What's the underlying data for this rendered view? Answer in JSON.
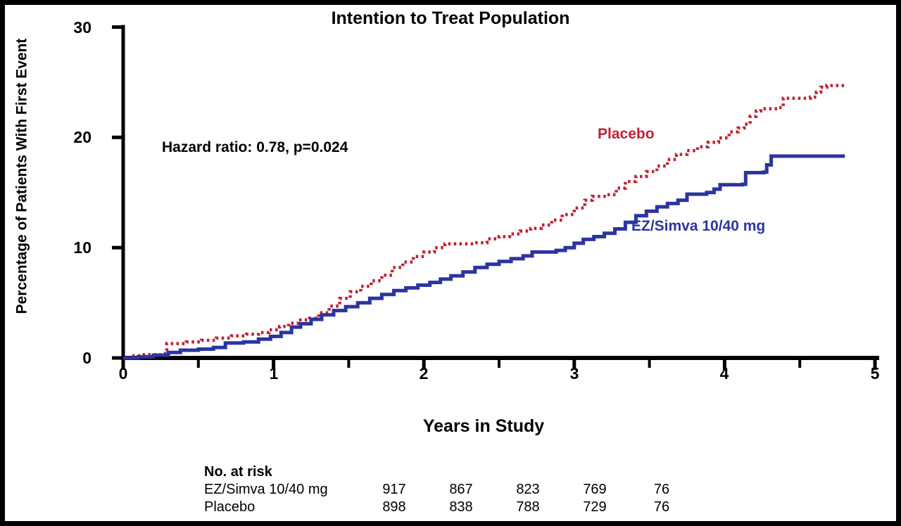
{
  "figure": {
    "title": "Intention to Treat Population",
    "y_axis_label": "Percentage of Patients With First Event",
    "x_axis_label": "Years in Study",
    "annotation": "Hazard ratio: 0.78, p=0.024"
  },
  "colors": {
    "placebo": "#c22033",
    "ez_simva": "#2b35a0",
    "axis": "#000000",
    "background": "#ffffff"
  },
  "curve_labels": {
    "placebo": "Placebo",
    "ez_simva": "EZ/Simva 10/40 mg"
  },
  "risk_table": {
    "header": "No. at risk",
    "rows": [
      {
        "label": "EZ/Simva 10/40 mg",
        "values": [
          "917",
          "867",
          "823",
          "769",
          "76"
        ]
      },
      {
        "label": "Placebo",
        "values": [
          "898",
          "838",
          "788",
          "729",
          "76"
        ]
      }
    ]
  },
  "chart_data": {
    "type": "line",
    "subtype": "kaplan-meier-step",
    "title": "Intention to Treat Population",
    "xlabel": "Years in Study",
    "ylabel": "Percentage of Patients With First Event",
    "annotation": "Hazard ratio: 0.78, p=0.024",
    "xlim": [
      0,
      5
    ],
    "ylim": [
      0,
      30
    ],
    "grid": false,
    "legend_position": "inline-curve-labels",
    "x_major_ticks": [
      0,
      1,
      2,
      3,
      4,
      5
    ],
    "x_minor_ticks": [
      0.5,
      1.5,
      2.5,
      3.5,
      4.5
    ],
    "y_ticks": [
      0,
      10,
      20,
      30
    ],
    "x_tick_labels": [
      "0",
      "1",
      "2",
      "3",
      "4",
      "5"
    ],
    "y_tick_labels": [
      "0",
      "10",
      "20",
      "30"
    ],
    "series": [
      {
        "name": "Placebo",
        "style": "dotted",
        "color": "#c22033",
        "points": [
          [
            0,
            0
          ],
          [
            0.06,
            0.2
          ],
          [
            0.14,
            0.3
          ],
          [
            0.25,
            0.4
          ],
          [
            0.29,
            1.3
          ],
          [
            0.42,
            1.45
          ],
          [
            0.52,
            1.6
          ],
          [
            0.62,
            1.8
          ],
          [
            0.72,
            2.0
          ],
          [
            0.82,
            2.15
          ],
          [
            0.9,
            2.3
          ],
          [
            0.97,
            2.55
          ],
          [
            1.04,
            2.85
          ],
          [
            1.1,
            3.15
          ],
          [
            1.17,
            3.45
          ],
          [
            1.24,
            3.6
          ],
          [
            1.3,
            4.1
          ],
          [
            1.37,
            4.7
          ],
          [
            1.44,
            5.4
          ],
          [
            1.51,
            6.0
          ],
          [
            1.58,
            6.5
          ],
          [
            1.65,
            7.0
          ],
          [
            1.72,
            7.5
          ],
          [
            1.79,
            8.2
          ],
          [
            1.86,
            8.7
          ],
          [
            1.93,
            9.2
          ],
          [
            2.0,
            9.6
          ],
          [
            2.07,
            10.0
          ],
          [
            2.14,
            10.35
          ],
          [
            2.34,
            10.45
          ],
          [
            2.42,
            10.8
          ],
          [
            2.5,
            11.0
          ],
          [
            2.57,
            11.25
          ],
          [
            2.64,
            11.5
          ],
          [
            2.71,
            11.75
          ],
          [
            2.78,
            12.05
          ],
          [
            2.85,
            12.5
          ],
          [
            2.92,
            13.0
          ],
          [
            3.0,
            13.6
          ],
          [
            3.07,
            14.3
          ],
          [
            3.12,
            14.65
          ],
          [
            3.22,
            14.8
          ],
          [
            3.28,
            15.4
          ],
          [
            3.34,
            16.0
          ],
          [
            3.41,
            16.45
          ],
          [
            3.48,
            16.9
          ],
          [
            3.55,
            17.4
          ],
          [
            3.62,
            18.0
          ],
          [
            3.68,
            18.45
          ],
          [
            3.75,
            18.8
          ],
          [
            3.82,
            19.15
          ],
          [
            3.89,
            19.55
          ],
          [
            3.96,
            19.95
          ],
          [
            4.03,
            20.5
          ],
          [
            4.09,
            20.85
          ],
          [
            4.13,
            21.2
          ],
          [
            4.17,
            21.9
          ],
          [
            4.21,
            22.4
          ],
          [
            4.24,
            22.6
          ],
          [
            4.36,
            22.7
          ],
          [
            4.39,
            23.55
          ],
          [
            4.57,
            23.65
          ],
          [
            4.61,
            24.1
          ],
          [
            4.64,
            24.55
          ],
          [
            4.68,
            24.7
          ],
          [
            4.8,
            24.75
          ]
        ]
      },
      {
        "name": "EZ/Simva 10/40 mg",
        "style": "solid",
        "color": "#2b35a0",
        "points": [
          [
            0,
            0
          ],
          [
            0.1,
            0.1
          ],
          [
            0.2,
            0.25
          ],
          [
            0.3,
            0.5
          ],
          [
            0.38,
            0.7
          ],
          [
            0.5,
            0.8
          ],
          [
            0.6,
            0.95
          ],
          [
            0.68,
            1.35
          ],
          [
            0.8,
            1.45
          ],
          [
            0.9,
            1.7
          ],
          [
            0.98,
            1.95
          ],
          [
            1.05,
            2.3
          ],
          [
            1.12,
            2.8
          ],
          [
            1.18,
            3.1
          ],
          [
            1.25,
            3.5
          ],
          [
            1.32,
            3.9
          ],
          [
            1.4,
            4.3
          ],
          [
            1.48,
            4.65
          ],
          [
            1.56,
            5.0
          ],
          [
            1.64,
            5.4
          ],
          [
            1.72,
            5.75
          ],
          [
            1.8,
            6.1
          ],
          [
            1.88,
            6.35
          ],
          [
            1.96,
            6.6
          ],
          [
            2.04,
            6.85
          ],
          [
            2.11,
            7.15
          ],
          [
            2.18,
            7.45
          ],
          [
            2.26,
            7.8
          ],
          [
            2.34,
            8.2
          ],
          [
            2.42,
            8.5
          ],
          [
            2.5,
            8.75
          ],
          [
            2.58,
            9.0
          ],
          [
            2.66,
            9.25
          ],
          [
            2.72,
            9.6
          ],
          [
            2.88,
            9.75
          ],
          [
            2.94,
            10.0
          ],
          [
            3.0,
            10.4
          ],
          [
            3.06,
            10.75
          ],
          [
            3.13,
            11.0
          ],
          [
            3.2,
            11.3
          ],
          [
            3.27,
            11.7
          ],
          [
            3.34,
            12.3
          ],
          [
            3.41,
            12.9
          ],
          [
            3.48,
            13.3
          ],
          [
            3.55,
            13.7
          ],
          [
            3.62,
            14.0
          ],
          [
            3.69,
            14.3
          ],
          [
            3.75,
            14.85
          ],
          [
            3.88,
            15.0
          ],
          [
            3.93,
            15.3
          ],
          [
            3.97,
            15.7
          ],
          [
            4.12,
            15.75
          ],
          [
            4.14,
            16.8
          ],
          [
            4.26,
            16.85
          ],
          [
            4.28,
            17.5
          ],
          [
            4.31,
            18.3
          ],
          [
            4.8,
            18.3
          ]
        ]
      }
    ]
  }
}
